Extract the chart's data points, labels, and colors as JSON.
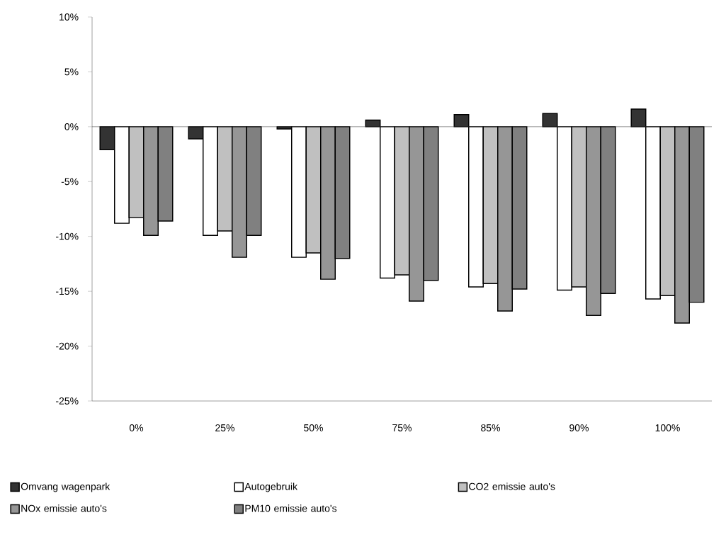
{
  "chart_data": {
    "type": "bar",
    "categories": [
      "0%",
      "25%",
      "50%",
      "75%",
      "85%",
      "90%",
      "100%"
    ],
    "series": [
      {
        "name": "Omvang wagenpark",
        "color": "#333333",
        "values": [
          -2.1,
          -1.1,
          -0.2,
          0.6,
          1.1,
          1.2,
          1.6
        ]
      },
      {
        "name": "Autogebruik",
        "color": "#ffffff",
        "values": [
          -8.8,
          -9.9,
          -11.9,
          -13.8,
          -14.6,
          -14.9,
          -15.7
        ]
      },
      {
        "name": "CO2 emissie auto's",
        "color": "#c0c0c0",
        "values": [
          -8.3,
          -9.5,
          -11.5,
          -13.5,
          -14.3,
          -14.6,
          -15.4
        ]
      },
      {
        "name": "NOx emissie auto's",
        "color": "#969696",
        "values": [
          -9.9,
          -11.9,
          -13.9,
          -15.9,
          -16.8,
          -17.2,
          -17.9
        ]
      },
      {
        "name": "PM10 emissie auto's",
        "color": "#808080",
        "values": [
          -8.6,
          -9.9,
          -12.0,
          -14.0,
          -14.8,
          -15.2,
          -16.0
        ]
      }
    ],
    "ylim": [
      -25,
      10
    ],
    "yticks": [
      {
        "value": -25,
        "label": "-25%"
      },
      {
        "value": -20,
        "label": "-20%"
      },
      {
        "value": -15,
        "label": "-15%"
      },
      {
        "value": -10,
        "label": "-10%"
      },
      {
        "value": -5,
        "label": "-5%"
      },
      {
        "value": 0,
        "label": "0%"
      },
      {
        "value": 5,
        "label": "5%"
      },
      {
        "value": 10,
        "label": "10%"
      }
    ],
    "legend": "bottom"
  }
}
